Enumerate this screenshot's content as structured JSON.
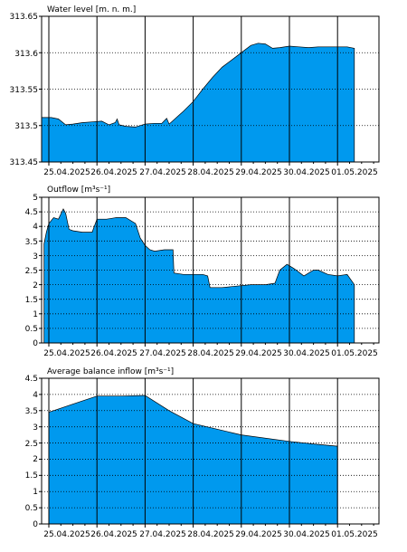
{
  "chart_data": [
    {
      "type": "area",
      "title": "Water level [m. n. m.]",
      "x_tick_labels": [
        "25.04.2025",
        "26.04.2025",
        "27.04.2025",
        "28.04.2025",
        "29.04.2025",
        "30.04.2025",
        "01.05.2025"
      ],
      "y_tick_labels": [
        "313.45",
        "313.5",
        "313.55",
        "313.6",
        "313.65"
      ],
      "ylim": [
        313.45,
        313.65
      ],
      "x_unit": "days since 25.04.2025 00:00",
      "grid": true,
      "fill_color": "#0099ee",
      "series": [
        {
          "x": [
            -0.15,
            0.05,
            0.2,
            0.35,
            0.5,
            0.7,
            0.9,
            1.1,
            1.25,
            1.38,
            1.42,
            1.46,
            1.6,
            1.8,
            2.0,
            2.2,
            2.35,
            2.45,
            2.5,
            2.55,
            2.8,
            3.0,
            3.2,
            3.4,
            3.6,
            3.8,
            4.0,
            4.2,
            4.35,
            4.5,
            4.65,
            4.8,
            5.0,
            5.2,
            5.4,
            5.6,
            5.8,
            6.0,
            6.2,
            6.35
          ],
          "y": [
            313.511,
            313.511,
            313.509,
            313.501,
            313.502,
            313.504,
            313.505,
            313.506,
            313.501,
            313.504,
            313.509,
            313.501,
            313.499,
            313.498,
            313.502,
            313.503,
            313.503,
            313.51,
            313.502,
            313.505,
            313.52,
            313.533,
            313.55,
            313.566,
            313.58,
            313.59,
            313.6,
            313.61,
            313.613,
            313.612,
            313.606,
            313.607,
            313.609,
            313.608,
            313.607,
            313.608,
            313.608,
            313.608,
            313.608,
            313.606
          ]
        }
      ]
    },
    {
      "type": "area",
      "title": "Outflow [m³s⁻¹]",
      "x_tick_labels": [
        "25.04.2025",
        "26.04.2025",
        "27.04.2025",
        "28.04.2025",
        "29.04.2025",
        "30.04.2025",
        "01.05.2025"
      ],
      "y_tick_labels": [
        "0",
        "0.5",
        "1",
        "1.5",
        "2",
        "2.5",
        "3",
        "3.5",
        "4",
        "4.5",
        "5"
      ],
      "ylim": [
        0,
        5
      ],
      "x_unit": "days since 25.04.2025 00:00",
      "grid": true,
      "fill_color": "#0099ee",
      "series": [
        {
          "x": [
            -0.1,
            -0.05,
            0.0,
            0.1,
            0.2,
            0.3,
            0.35,
            0.42,
            0.5,
            0.7,
            0.9,
            1.0,
            1.2,
            1.4,
            1.6,
            1.8,
            1.9,
            2.0,
            2.1,
            2.2,
            2.4,
            2.5,
            2.58,
            2.6,
            2.8,
            3.0,
            3.2,
            3.3,
            3.35,
            3.6,
            3.9,
            4.2,
            4.5,
            4.7,
            4.8,
            4.95,
            5.1,
            5.3,
            5.5,
            5.6,
            5.8,
            6.0,
            6.2,
            6.35
          ],
          "y": [
            3.4,
            3.8,
            4.1,
            4.3,
            4.25,
            4.6,
            4.45,
            3.9,
            3.85,
            3.8,
            3.8,
            4.25,
            4.25,
            4.3,
            4.3,
            4.1,
            3.6,
            3.35,
            3.2,
            3.15,
            3.2,
            3.2,
            3.2,
            2.4,
            2.35,
            2.35,
            2.35,
            2.3,
            1.9,
            1.9,
            1.95,
            2.0,
            2.0,
            2.05,
            2.5,
            2.7,
            2.55,
            2.3,
            2.5,
            2.5,
            2.35,
            2.3,
            2.35,
            2.0
          ]
        }
      ]
    },
    {
      "type": "area",
      "title": "Average balance inflow  [m³s⁻¹]",
      "x_tick_labels": [
        "25.04.2025",
        "26.04.2025",
        "27.04.2025",
        "28.04.2025",
        "29.04.2025",
        "30.04.2025",
        "01.05.2025"
      ],
      "y_tick_labels": [
        "0",
        "0.5",
        "1",
        "1.5",
        "2",
        "2.5",
        "3",
        "3.5",
        "4",
        "4.5"
      ],
      "ylim": [
        0,
        4.5
      ],
      "x_unit": "days since 25.04.2025 00:00",
      "grid": true,
      "fill_color": "#0099ee",
      "series": [
        {
          "x": [
            0.0,
            0.5,
            1.0,
            1.5,
            2.0,
            2.5,
            3.0,
            4.0,
            5.0,
            5.5,
            6.0
          ],
          "y": [
            3.45,
            3.7,
            3.95,
            3.95,
            3.97,
            3.5,
            3.1,
            2.75,
            2.55,
            2.47,
            2.4
          ]
        }
      ]
    }
  ]
}
